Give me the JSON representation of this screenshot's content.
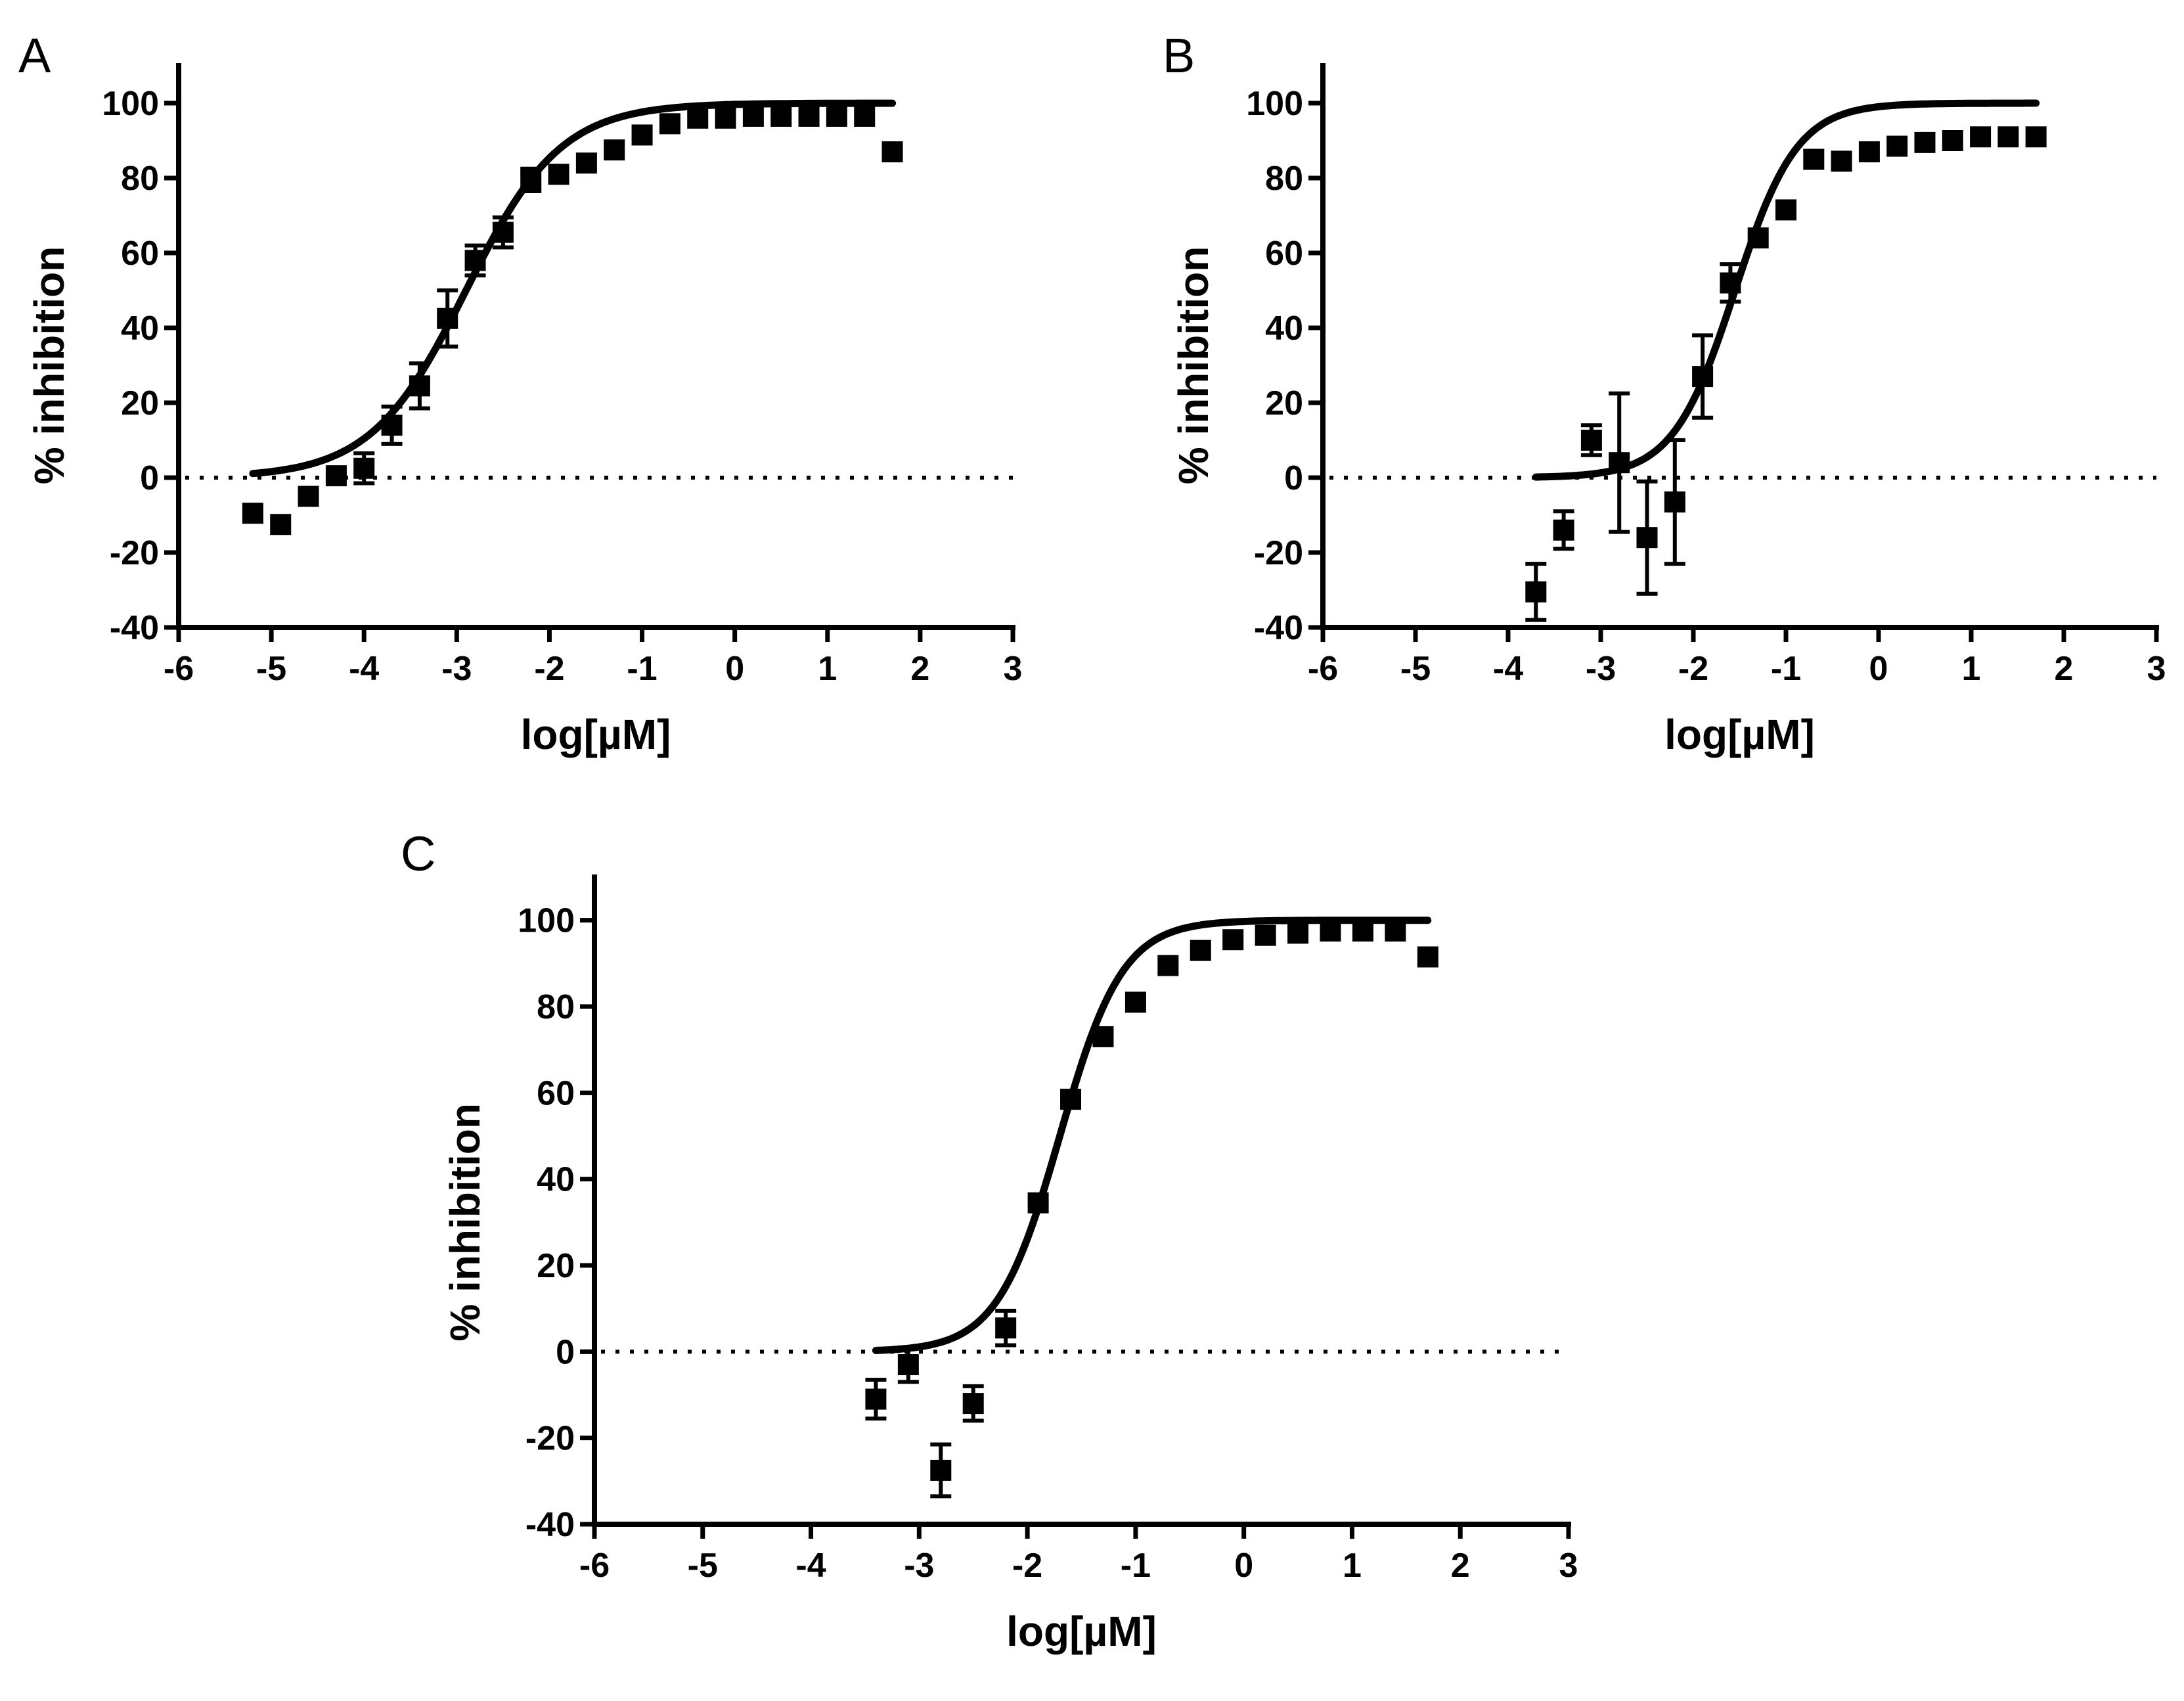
{
  "chart_data": [
    {
      "type": "scatter",
      "panel": "A",
      "xlabel": "log[µM]",
      "ylabel": "% inhibition",
      "xlim": [
        -6,
        3
      ],
      "ylim": [
        -40,
        110
      ],
      "x_ticks": [
        -6,
        -5,
        -4,
        -3,
        -2,
        -1,
        0,
        1,
        2,
        3
      ],
      "y_ticks": [
        100,
        80,
        60,
        40,
        20,
        0,
        -20,
        -40
      ],
      "zero_line": true,
      "fit": {
        "bottom": 0,
        "top": 100,
        "logIC50": -2.9,
        "hill": 0.85,
        "x_range": [
          -5.2,
          1.7
        ]
      },
      "points": [
        {
          "x": -5.2,
          "y": -9.5
        },
        {
          "x": -4.9,
          "y": -12.5
        },
        {
          "x": -4.6,
          "y": -5
        },
        {
          "x": -4.3,
          "y": 0.5
        },
        {
          "x": -4.0,
          "y": 2.5,
          "err": 4
        },
        {
          "x": -3.7,
          "y": 14,
          "err": 5
        },
        {
          "x": -3.4,
          "y": 24.5,
          "err": 6
        },
        {
          "x": -3.1,
          "y": 42.5,
          "err": 7.5
        },
        {
          "x": -2.8,
          "y": 58,
          "err": 4
        },
        {
          "x": -2.5,
          "y": 65.5,
          "err": 4
        },
        {
          "x": -2.2,
          "y": 79.5,
          "err": 3
        },
        {
          "x": -1.9,
          "y": 81
        },
        {
          "x": -1.6,
          "y": 84
        },
        {
          "x": -1.3,
          "y": 87.5
        },
        {
          "x": -1.0,
          "y": 91.5
        },
        {
          "x": -0.7,
          "y": 94.5
        },
        {
          "x": -0.4,
          "y": 96
        },
        {
          "x": -0.1,
          "y": 96
        },
        {
          "x": 0.2,
          "y": 96.5
        },
        {
          "x": 0.5,
          "y": 96.5
        },
        {
          "x": 0.8,
          "y": 96.5
        },
        {
          "x": 1.1,
          "y": 96.5
        },
        {
          "x": 1.4,
          "y": 96.5
        },
        {
          "x": 1.7,
          "y": 87
        }
      ]
    },
    {
      "type": "scatter",
      "panel": "B",
      "xlabel": "log[µM]",
      "ylabel": "% inhibition",
      "xlim": [
        -6,
        3
      ],
      "ylim": [
        -40,
        110
      ],
      "x_ticks": [
        -6,
        -5,
        -4,
        -3,
        -2,
        -1,
        0,
        1,
        2,
        3
      ],
      "y_ticks": [
        100,
        80,
        60,
        40,
        20,
        0,
        -20,
        -40
      ],
      "zero_line": true,
      "fit": {
        "bottom": 0,
        "top": 100,
        "logIC50": -1.55,
        "hill": 1.3,
        "x_range": [
          -3.7,
          1.7
        ]
      },
      "points": [
        {
          "x": -3.7,
          "y": -30.5,
          "err": 7.5
        },
        {
          "x": -3.4,
          "y": -14,
          "err": 5
        },
        {
          "x": -3.1,
          "y": 10,
          "err": 4
        },
        {
          "x": -2.8,
          "y": 4,
          "err": 18.5
        },
        {
          "x": -2.5,
          "y": -16,
          "err": 15
        },
        {
          "x": -2.2,
          "y": -6.5,
          "err": 16.5
        },
        {
          "x": -1.9,
          "y": 27,
          "err": 11
        },
        {
          "x": -1.6,
          "y": 52,
          "err": 5
        },
        {
          "x": -1.3,
          "y": 64
        },
        {
          "x": -1.0,
          "y": 71.5
        },
        {
          "x": -0.7,
          "y": 85
        },
        {
          "x": -0.4,
          "y": 84.5
        },
        {
          "x": -0.1,
          "y": 87
        },
        {
          "x": 0.2,
          "y": 88.5
        },
        {
          "x": 0.5,
          "y": 89.5
        },
        {
          "x": 0.8,
          "y": 90
        },
        {
          "x": 1.1,
          "y": 91
        },
        {
          "x": 1.4,
          "y": 91
        },
        {
          "x": 1.7,
          "y": 91
        }
      ]
    },
    {
      "type": "scatter",
      "panel": "C",
      "xlabel": "log[µM]",
      "ylabel": "% inhibition",
      "xlim": [
        -6,
        3
      ],
      "ylim": [
        -40,
        110
      ],
      "x_ticks": [
        -6,
        -5,
        -4,
        -3,
        -2,
        -1,
        0,
        1,
        2,
        3
      ],
      "y_ticks": [
        100,
        80,
        60,
        40,
        20,
        0,
        -20,
        -40
      ],
      "zero_line": true,
      "fit": {
        "bottom": 0,
        "top": 100,
        "logIC50": -1.7,
        "hill": 1.5,
        "x_range": [
          -3.4,
          1.7
        ]
      },
      "points": [
        {
          "x": -3.4,
          "y": -11,
          "err": 4.5
        },
        {
          "x": -3.1,
          "y": -3,
          "err": 4
        },
        {
          "x": -2.8,
          "y": -27.5,
          "err": 6
        },
        {
          "x": -2.5,
          "y": -12,
          "err": 4
        },
        {
          "x": -2.2,
          "y": 5.5,
          "err": 4
        },
        {
          "x": -1.9,
          "y": 34.5
        },
        {
          "x": -1.6,
          "y": 58.5
        },
        {
          "x": -1.3,
          "y": 73
        },
        {
          "x": -1.0,
          "y": 81
        },
        {
          "x": -0.7,
          "y": 89.5
        },
        {
          "x": -0.4,
          "y": 93
        },
        {
          "x": -0.1,
          "y": 95.5
        },
        {
          "x": 0.2,
          "y": 96.5
        },
        {
          "x": 0.5,
          "y": 97
        },
        {
          "x": 0.8,
          "y": 97.5
        },
        {
          "x": 1.1,
          "y": 97.5
        },
        {
          "x": 1.4,
          "y": 97.5
        },
        {
          "x": 1.7,
          "y": 91.5
        }
      ]
    }
  ]
}
